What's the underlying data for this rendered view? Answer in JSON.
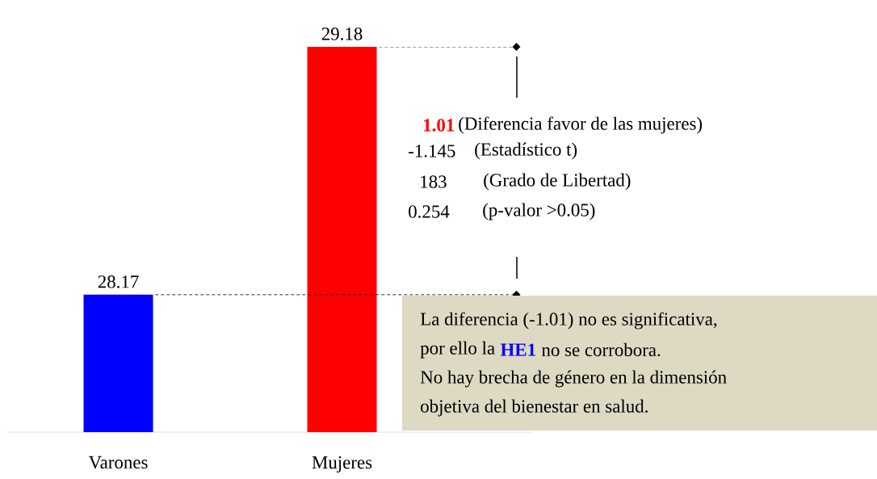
{
  "chart_data": {
    "type": "bar",
    "categories": [
      "Varones",
      "Mujeres"
    ],
    "values": [
      28.17,
      29.18
    ],
    "colors": [
      "#0000ff",
      "#ff0000"
    ],
    "ylim": [
      27.61,
      29.18
    ],
    "data_labels": true,
    "ref_lines": [
      {
        "axis": "y",
        "value": 29.18,
        "line_style": "dashed"
      },
      {
        "axis": "y",
        "value": 28.17,
        "line_style": "dashed"
      }
    ],
    "annotations": [
      "1.01",
      "(Diferencia favor de las mujeres)",
      "-1.145",
      "(Estadístico t)",
      "183",
      "(Grado de  Libertad)",
      "0.254",
      "(p-valor >0.05)",
      "La diferencia (-1.01) no es significativa,",
      "por ello la",
      "HE1",
      "no se corrobora.",
      "No hay brecha de género en la dimensión",
      "objetiva del bienestar en salud."
    ]
  }
}
